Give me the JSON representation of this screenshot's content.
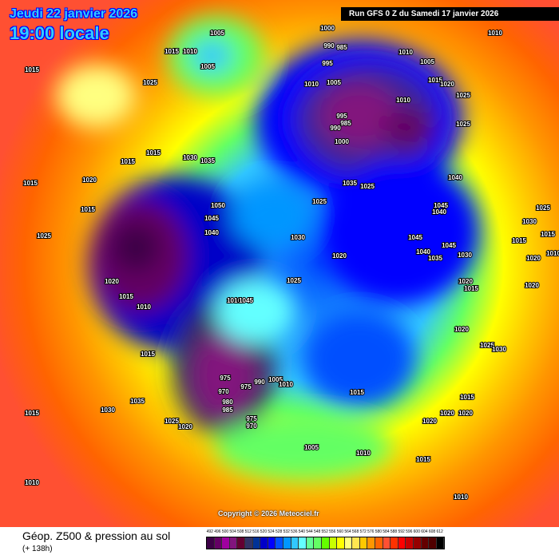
{
  "header": {
    "date": "Jeudi 22 janvier 2026",
    "time": "19:00 locale",
    "run": "Run GFS 0 Z du Samedi 17 janvier 2026"
  },
  "copyright": "Copyright © 2026 Meteociel.fr",
  "footer": {
    "title": "Géop. Z500 & pression au sol",
    "subtitle": "(+ 138h)"
  },
  "legend": {
    "ticks": [
      "492",
      "496",
      "500",
      "504",
      "508",
      "512",
      "516",
      "520",
      "524",
      "528",
      "532",
      "536",
      "540",
      "544",
      "548",
      "552",
      "556",
      "560",
      "564",
      "568",
      "572",
      "576",
      "580",
      "584",
      "588",
      "592",
      "596",
      "600",
      "604",
      "608",
      "612"
    ],
    "colors": [
      "#3c0046",
      "#640064",
      "#a000a0",
      "#82147d",
      "#640032",
      "#323264",
      "#003296",
      "#0000c8",
      "#0000ff",
      "#0050ff",
      "#0096ff",
      "#32c8ff",
      "#64ffff",
      "#64ff96",
      "#64ff64",
      "#64ff00",
      "#c8ff00",
      "#ffff00",
      "#ffff80",
      "#ffe650",
      "#ffc800",
      "#ff9600",
      "#ff6400",
      "#ff5032",
      "#ff3200",
      "#ff0000",
      "#c80000",
      "#960000",
      "#640000",
      "#500000",
      "#000000"
    ]
  },
  "pressure_labels": [
    "1005",
    "1015",
    "1010",
    "1005",
    "1015",
    "1025",
    "1000",
    "990",
    "985",
    "995",
    "1010",
    "1005",
    "1010",
    "1015",
    "1020",
    "1010",
    "1005",
    "1025",
    "1010",
    "995",
    "985",
    "990",
    "1000",
    "1025",
    "1015",
    "1015",
    "1030",
    "1035",
    "1015",
    "1020",
    "1035",
    "1025",
    "1040",
    "1050",
    "1045",
    "1040",
    "1025",
    "1015",
    "1045",
    "1040",
    "1025",
    "1030",
    "1045",
    "1015",
    "1020",
    "1045",
    "1040",
    "1035",
    "1030",
    "1020",
    "1015",
    "1010",
    "1025",
    "1020",
    "1015",
    "1010",
    "1045",
    "1020",
    "1025",
    "1030",
    "1015",
    "975",
    "970",
    "975",
    "990",
    "1005",
    "1010",
    "980",
    "985",
    "1015",
    "1015",
    "1035",
    "1030",
    "1015",
    "1025",
    "1020",
    "975",
    "970",
    "1020",
    "1020",
    "1020",
    "1005",
    "1010",
    "1015",
    "1010",
    "1010",
    "1030",
    "1025",
    "1015",
    "1020",
    "1010",
    "1020"
  ]
}
